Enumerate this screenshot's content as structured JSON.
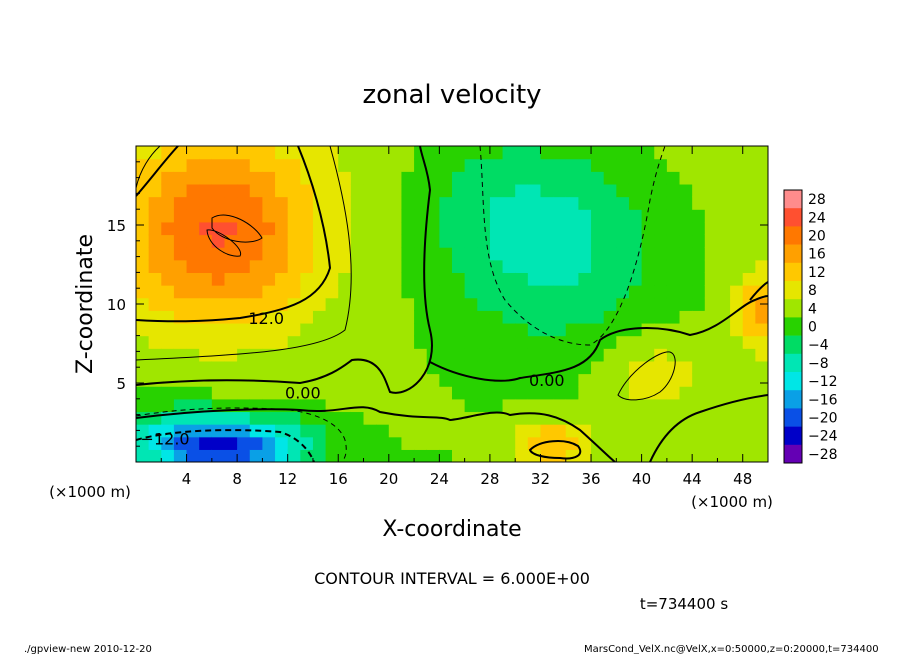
{
  "chart_data": {
    "type": "heatmap",
    "title": "zonal velocity",
    "xlabel": "X-coordinate",
    "ylabel": "Z-coordinate",
    "x_unit": "(×1000 m)",
    "y_unit": "(×1000 m)",
    "xlim": [
      0,
      50
    ],
    "ylim": [
      0,
      20
    ],
    "x_ticks": [
      "4",
      "8",
      "12",
      "16",
      "20",
      "24",
      "28",
      "32",
      "36",
      "40",
      "44",
      "48"
    ],
    "y_ticks": [
      "5",
      "10",
      "15"
    ],
    "colorbar": {
      "labels": [
        "28",
        "24",
        "20",
        "16",
        "12",
        "8",
        "4",
        "0",
        "−4",
        "−8",
        "−12",
        "−16",
        "−20",
        "−24",
        "−28"
      ],
      "colors": [
        "#ff8c8c",
        "#ff5030",
        "#ff7800",
        "#ffa000",
        "#ffc800",
        "#e6e600",
        "#a0e600",
        "#28d200",
        "#00dc64",
        "#00e6b4",
        "#00e6e6",
        "#0aa0e6",
        "#0a50e6",
        "#0000c8",
        "#6400b4"
      ]
    },
    "features": [
      {
        "x": 6.5,
        "z": 14.5,
        "value": 19,
        "sigma_x": 5.5,
        "sigma_z": 4.2
      },
      {
        "x": 8,
        "z": 1.0,
        "value": -22,
        "sigma_x": 4.0,
        "sigma_z": 1.3
      },
      {
        "x": 33,
        "z": 14,
        "value": -11,
        "sigma_x": 6.0,
        "sigma_z": 4.5
      },
      {
        "x": 33,
        "z": 1.2,
        "value": 12,
        "sigma_x": 2.2,
        "sigma_z": 1.1
      },
      {
        "x": 41,
        "z": 5.5,
        "value": 6,
        "sigma_x": 3.0,
        "sigma_z": 1.8
      },
      {
        "x": 49.5,
        "z": 9.5,
        "value": 12,
        "sigma_x": 1.5,
        "sigma_z": 1.8
      },
      {
        "x": 3,
        "z": 1.5,
        "value": -10,
        "sigma_x": 3,
        "sigma_z": 1.5
      },
      {
        "x": 27,
        "z": 17,
        "value": -3,
        "sigma_x": 4,
        "sigma_z": 3
      }
    ],
    "contour_labels": [
      {
        "text": "12.0",
        "x": 10.3,
        "z": 9.1
      },
      {
        "text": "0.00",
        "x": 13.2,
        "z": 4.4
      },
      {
        "text": "0.00",
        "x": 32.5,
        "z": 5.2
      },
      {
        "text": "−12.0",
        "x": 2.3,
        "z": 1.5
      }
    ],
    "contour_interval": "CONTOUR INTERVAL = 6.000E+00",
    "time_label": "t=734400 s"
  },
  "footer": {
    "left": "./gpview-new   2010-12-20",
    "right": "MarsCond_VelX.nc@VelX,x=0:50000,z=0:20000,t=734400"
  }
}
